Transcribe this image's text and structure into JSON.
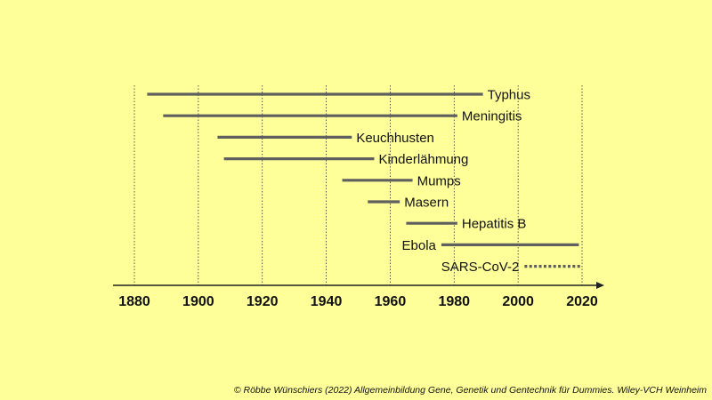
{
  "chart_data": {
    "type": "timeline",
    "title": "",
    "xlabel": "",
    "ylabel": "",
    "xlim": [
      1873,
      2027
    ],
    "x_ticks": [
      1880,
      1900,
      1920,
      1940,
      1960,
      1980,
      2000,
      2020
    ],
    "grid": "vertical dotted",
    "series": [
      {
        "name": "Typhus",
        "start": 1884,
        "end": 1989,
        "label_side": "right",
        "style": "solid"
      },
      {
        "name": "Meningitis",
        "start": 1889,
        "end": 1981,
        "label_side": "right",
        "style": "solid"
      },
      {
        "name": "Keuchhusten",
        "start": 1906,
        "end": 1948,
        "label_side": "right",
        "style": "solid"
      },
      {
        "name": "Kinderlähmung",
        "start": 1908,
        "end": 1955,
        "label_side": "right",
        "style": "solid"
      },
      {
        "name": "Mumps",
        "start": 1945,
        "end": 1967,
        "label_side": "right",
        "style": "solid"
      },
      {
        "name": "Masern",
        "start": 1953,
        "end": 1963,
        "label_side": "right",
        "style": "solid"
      },
      {
        "name": "Hepatitis B",
        "start": 1965,
        "end": 1981,
        "label_side": "right",
        "style": "solid"
      },
      {
        "name": "Ebola",
        "start": 1976,
        "end": 2019,
        "label_side": "left",
        "style": "solid"
      },
      {
        "name": "SARS-CoV-2",
        "start": 2002,
        "end": 2020,
        "label_side": "left",
        "style": "dotted"
      }
    ]
  },
  "colors": {
    "background": "#ffff99",
    "bar": "#5f5f5f",
    "axis": "#222222",
    "grid": "#333333"
  },
  "footer": "© Röbbe Wünschiers (2022) Allgemeinbildung Gene, Genetik und Gentechnik für Dummies. Wiley-VCH Weinheim"
}
